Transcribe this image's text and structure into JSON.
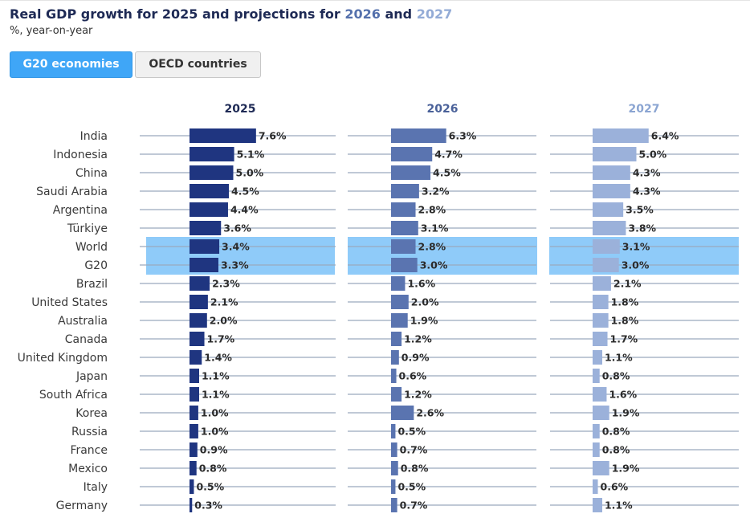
{
  "title": {
    "prefix": "Real GDP growth for 2025 and projections for ",
    "year2026": "2026",
    "mid": " and ",
    "year2027": "2027"
  },
  "subtitle": "%, year-on-year",
  "tabs": [
    {
      "label": "G20 economies",
      "active": true
    },
    {
      "label": "OECD countries",
      "active": false
    }
  ],
  "chart_data": {
    "type": "bar",
    "orientation": "horizontal",
    "categories": [
      "India",
      "Indonesia",
      "China",
      "Saudi Arabia",
      "Argentina",
      "Türkiye",
      "World",
      "G20",
      "Brazil",
      "United States",
      "Australia",
      "Canada",
      "United Kingdom",
      "Japan",
      "South Africa",
      "Korea",
      "Russia",
      "France",
      "Mexico",
      "Italy",
      "Germany"
    ],
    "highlighted": [
      "World",
      "G20"
    ],
    "value_suffix": "%",
    "series": [
      {
        "name": "2025",
        "color": "#1f3580",
        "values": [
          7.6,
          5.1,
          5.0,
          4.5,
          4.4,
          3.6,
          3.4,
          3.3,
          2.3,
          2.1,
          2.0,
          1.7,
          1.4,
          1.1,
          1.1,
          1.0,
          1.0,
          0.9,
          0.8,
          0.5,
          0.3
        ]
      },
      {
        "name": "2026",
        "color": "#5a74b0",
        "values": [
          6.3,
          4.7,
          4.5,
          3.2,
          2.8,
          3.1,
          2.8,
          3.0,
          1.6,
          2.0,
          1.9,
          1.2,
          0.9,
          0.6,
          1.2,
          2.6,
          0.5,
          0.7,
          0.8,
          0.5,
          0.7
        ]
      },
      {
        "name": "2027",
        "color": "#9bb1da",
        "values": [
          6.4,
          5.0,
          4.3,
          4.3,
          3.5,
          3.8,
          3.1,
          3.0,
          2.1,
          1.8,
          1.8,
          1.7,
          1.1,
          0.8,
          1.6,
          1.9,
          0.8,
          0.8,
          1.9,
          0.6,
          1.1
        ]
      }
    ],
    "colors": {
      "highlight_band": "#8fcbf9",
      "axis_line": "#9aa9be",
      "header_2025": "#1e2a55",
      "header_2026": "#4a6199",
      "header_2027": "#8ba5d2"
    }
  }
}
